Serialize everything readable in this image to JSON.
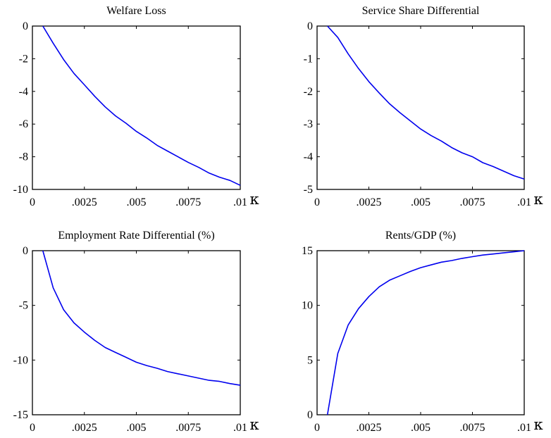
{
  "chart_data": [
    {
      "type": "line",
      "title": "Welfare Loss",
      "xlabel": "κ",
      "ylabel": "",
      "xlim": [
        0,
        0.01
      ],
      "ylim": [
        -10,
        0
      ],
      "x_ticks": [
        0,
        0.0025,
        0.005,
        0.0075,
        0.01
      ],
      "x_tick_labels": [
        "0",
        ".0025",
        ".005",
        ".0075",
        ".01"
      ],
      "y_ticks": [
        -10,
        -8,
        -6,
        -4,
        -2,
        0
      ],
      "y_tick_labels": [
        "-10",
        "-8",
        "-6",
        "-4",
        "-2",
        "0"
      ],
      "grid": false,
      "series": [
        {
          "color": "#0000ee",
          "x": [
            0.0005,
            0.001,
            0.0015,
            0.002,
            0.0025,
            0.003,
            0.0035,
            0.004,
            0.0045,
            0.005,
            0.0055,
            0.006,
            0.0065,
            0.007,
            0.0075,
            0.008,
            0.0085,
            0.009,
            0.0095,
            0.01
          ],
          "y": [
            0,
            -1.05,
            -2.05,
            -2.9,
            -3.6,
            -4.3,
            -4.95,
            -5.5,
            -5.95,
            -6.45,
            -6.85,
            -7.3,
            -7.65,
            -8.0,
            -8.35,
            -8.65,
            -9.0,
            -9.25,
            -9.45,
            -9.75
          ]
        }
      ]
    },
    {
      "type": "line",
      "title": "Service Share Differential",
      "xlabel": "κ",
      "ylabel": "",
      "xlim": [
        0,
        0.01
      ],
      "ylim": [
        -5,
        0
      ],
      "x_ticks": [
        0,
        0.0025,
        0.005,
        0.0075,
        0.01
      ],
      "x_tick_labels": [
        "0",
        ".0025",
        ".005",
        ".0075",
        ".01"
      ],
      "y_ticks": [
        -5,
        -4,
        -3,
        -2,
        -1,
        0
      ],
      "y_tick_labels": [
        "-5",
        "-4",
        "-3",
        "-2",
        "-1",
        "0"
      ],
      "grid": false,
      "series": [
        {
          "color": "#0000ee",
          "x": [
            0.0005,
            0.001,
            0.0015,
            0.002,
            0.0025,
            0.003,
            0.0035,
            0.004,
            0.0045,
            0.005,
            0.0055,
            0.006,
            0.0065,
            0.007,
            0.0075,
            0.008,
            0.0085,
            0.009,
            0.0095,
            0.01
          ],
          "y": [
            0,
            -0.35,
            -0.85,
            -1.3,
            -1.7,
            -2.05,
            -2.38,
            -2.65,
            -2.9,
            -3.15,
            -3.35,
            -3.52,
            -3.72,
            -3.88,
            -4.0,
            -4.18,
            -4.3,
            -4.44,
            -4.58,
            -4.68
          ]
        }
      ]
    },
    {
      "type": "line",
      "title": "Employment Rate Differential (%)",
      "xlabel": "κ",
      "ylabel": "",
      "xlim": [
        0,
        0.01
      ],
      "ylim": [
        -15,
        0
      ],
      "x_ticks": [
        0,
        0.0025,
        0.005,
        0.0075,
        0.01
      ],
      "x_tick_labels": [
        "0",
        ".0025",
        ".005",
        ".0075",
        ".01"
      ],
      "y_ticks": [
        -15,
        -10,
        -5,
        0
      ],
      "y_tick_labels": [
        "-15",
        "-10",
        "-5",
        "0"
      ],
      "grid": false,
      "series": [
        {
          "color": "#0000ee",
          "x": [
            0.0005,
            0.001,
            0.0015,
            0.002,
            0.0025,
            0.003,
            0.0035,
            0.004,
            0.0045,
            0.005,
            0.0055,
            0.006,
            0.0065,
            0.007,
            0.0075,
            0.008,
            0.0085,
            0.009,
            0.0095,
            0.01
          ],
          "y": [
            0,
            -3.4,
            -5.4,
            -6.6,
            -7.45,
            -8.2,
            -8.85,
            -9.3,
            -9.75,
            -10.2,
            -10.5,
            -10.75,
            -11.05,
            -11.25,
            -11.45,
            -11.65,
            -11.85,
            -11.95,
            -12.15,
            -12.3
          ]
        }
      ]
    },
    {
      "type": "line",
      "title": "Rents/GDP (%)",
      "xlabel": "κ",
      "ylabel": "",
      "xlim": [
        0,
        0.01
      ],
      "ylim": [
        0,
        15
      ],
      "x_ticks": [
        0,
        0.0025,
        0.005,
        0.0075,
        0.01
      ],
      "x_tick_labels": [
        "0",
        ".0025",
        ".005",
        ".0075",
        ".01"
      ],
      "y_ticks": [
        0,
        5,
        10,
        15
      ],
      "y_tick_labels": [
        "0",
        "5",
        "10",
        "15"
      ],
      "grid": false,
      "series": [
        {
          "color": "#0000ee",
          "x": [
            0.0005,
            0.001,
            0.0015,
            0.002,
            0.0025,
            0.003,
            0.0035,
            0.004,
            0.0045,
            0.005,
            0.0055,
            0.006,
            0.0065,
            0.007,
            0.0075,
            0.008,
            0.0085,
            0.009,
            0.0095,
            0.01
          ],
          "y": [
            0,
            5.6,
            8.2,
            9.7,
            10.8,
            11.7,
            12.3,
            12.7,
            13.1,
            13.45,
            13.7,
            13.95,
            14.1,
            14.3,
            14.45,
            14.6,
            14.7,
            14.8,
            14.9,
            15.0
          ]
        }
      ]
    }
  ]
}
